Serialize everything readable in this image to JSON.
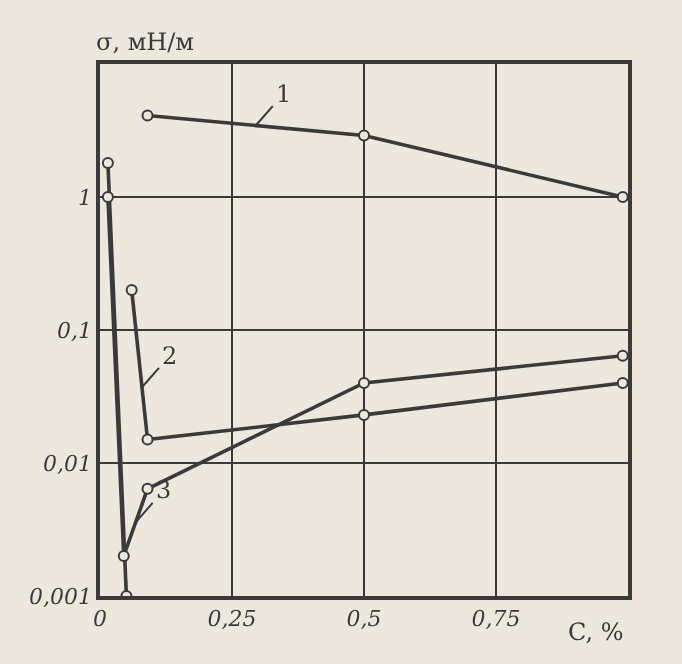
{
  "chart_data": {
    "type": "line",
    "xlabel": "C, %",
    "ylabel": "σ, мН/м",
    "xlim": [
      0,
      1
    ],
    "ylim": [
      0.001,
      10
    ],
    "log": "y",
    "grid": true,
    "marker": "circle",
    "legend": false,
    "xticks": [
      0,
      {
        "value": 0.25,
        "label": "0,25"
      },
      {
        "value": 0.5,
        "label": "0,5"
      },
      {
        "value": 0.75,
        "label": "0,75"
      }
    ],
    "yticks": [
      {
        "value": 0.001,
        "label": "0,001"
      },
      {
        "value": 0.01,
        "label": "0,01"
      },
      {
        "value": 0.1,
        "label": "0,1"
      },
      1
    ],
    "series": [
      {
        "name": "1",
        "color": "#3a3a3a",
        "x": [
          0.09,
          0.5,
          0.99
        ],
        "values": [
          4.1,
          2.9,
          1.0
        ]
      },
      {
        "name": "2",
        "color": "#3a3a3a",
        "x": [
          0.06,
          0.09,
          0.5,
          0.99
        ],
        "values": [
          0.2,
          0.015,
          0.023,
          0.04
        ]
      },
      {
        "color": "#3a3a3a",
        "x": [
          0.015,
          0.05
        ],
        "values": [
          1.8,
          0.001
        ]
      },
      {
        "name": "3",
        "color": "#3a3a3a",
        "x": [
          0.015,
          0.045,
          0.09,
          0.5,
          0.99
        ],
        "values": [
          1.0,
          0.002,
          0.0064,
          0.04,
          0.064
        ]
      }
    ]
  }
}
